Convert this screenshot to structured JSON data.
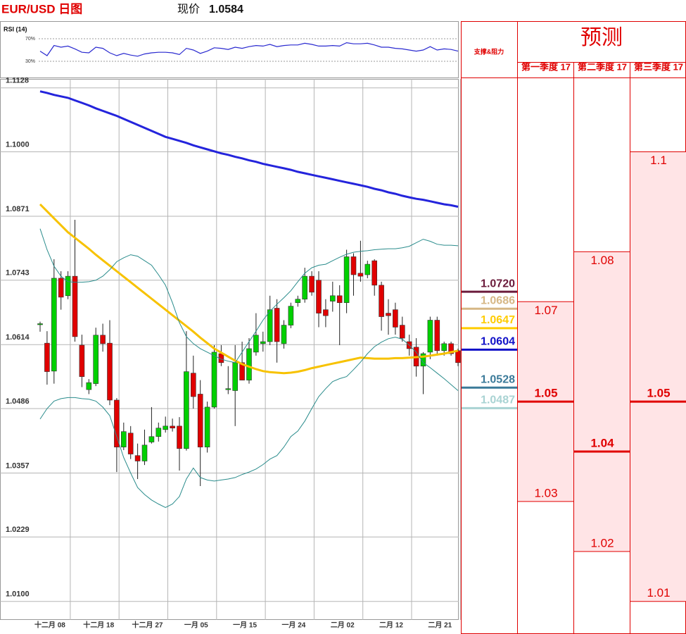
{
  "title": "EUR/USD 日图",
  "price_label": "现价",
  "price": 1.0584,
  "chart_data": [
    {
      "type": "candlestick",
      "categories": [
        null,
        "十二月 08",
        null,
        null,
        null,
        null,
        null,
        null,
        "十二月 18",
        null,
        null,
        null,
        null,
        null,
        null,
        "十二月 27",
        null,
        null,
        null,
        null,
        null,
        null,
        "一月 05",
        null,
        null,
        null,
        null,
        null,
        null,
        "一月 15",
        null,
        null,
        null,
        null,
        null,
        null,
        "一月 24",
        null,
        null,
        null,
        null,
        null,
        null,
        "二月 02",
        null,
        null,
        null,
        null,
        null,
        null,
        "二月 12",
        null,
        null,
        null,
        null,
        null,
        null,
        "二月 21",
        null,
        null,
        null
      ],
      "ohlc": {
        "open": [
          1.0655,
          1.0617,
          1.0561,
          1.0747,
          1.0712,
          1.0751,
          1.0613,
          1.0524,
          1.0536,
          1.0633,
          1.0617,
          1.0503,
          1.0409,
          1.0437,
          1.0392,
          1.0381,
          1.0419,
          1.043,
          1.0444,
          1.0451,
          1.0451,
          1.0406,
          1.0557,
          1.0515,
          1.0409,
          1.0489,
          1.0596,
          1.0525,
          1.0522,
          1.0578,
          1.0543,
          1.0599,
          1.0616,
          1.062,
          1.0687,
          1.0616,
          1.0653,
          1.0698,
          1.0705,
          1.0751,
          1.0743,
          1.0684,
          1.0701,
          1.0712,
          1.0698,
          1.079,
          1.0757,
          1.0754,
          1.0782,
          1.0733,
          1.0677,
          1.0684,
          1.0653,
          1.062,
          1.0609,
          1.0571,
          1.0599,
          1.0663,
          1.0602,
          1.0616,
          1.0602
        ],
        "high": [
          1.066,
          1.0641,
          1.0785,
          1.0761,
          1.0761,
          1.0864,
          1.0634,
          1.0545,
          1.0648,
          1.0656,
          1.0663,
          1.0507,
          1.0458,
          1.0451,
          1.0416,
          1.0444,
          1.0489,
          1.0458,
          1.047,
          1.0466,
          1.0469,
          1.0641,
          1.0592,
          1.0543,
          1.05,
          1.0613,
          1.0613,
          1.0571,
          1.0613,
          1.062,
          1.0627,
          1.0677,
          1.064,
          1.0712,
          1.0705,
          1.0663,
          1.0698,
          1.0712,
          1.0768,
          1.0761,
          1.0761,
          1.0705,
          1.074,
          1.0733,
          1.0804,
          1.0797,
          1.0822,
          1.0782,
          1.0785,
          1.074,
          1.0705,
          1.0698,
          1.067,
          1.0634,
          1.0627,
          1.0599,
          1.067,
          1.067,
          1.062,
          1.062,
          1.0606
        ],
        "low": [
          1.064,
          1.0534,
          1.0536,
          1.0684,
          1.0705,
          1.062,
          1.0529,
          1.0515,
          1.0531,
          1.06,
          1.0493,
          1.0359,
          1.0403,
          1.0385,
          1.0345,
          1.0373,
          1.0416,
          1.042,
          1.0438,
          1.044,
          1.0362,
          1.0402,
          1.0486,
          1.0331,
          1.0398,
          1.0486,
          1.0571,
          1.0515,
          1.0451,
          1.0543,
          1.0536,
          1.0592,
          1.06,
          1.0613,
          1.0578,
          1.0606,
          1.0647,
          1.069,
          1.0698,
          1.0712,
          1.0649,
          1.0649,
          1.068,
          1.0613,
          1.0677,
          1.0712,
          1.074,
          1.0747,
          1.0712,
          1.0642,
          1.0634,
          1.0634,
          1.062,
          1.0592,
          1.055,
          1.0515,
          1.0585,
          1.0592,
          1.0592,
          1.0592,
          1.0571
        ],
        "close": [
          1.0656,
          1.056,
          1.0747,
          1.0709,
          1.0751,
          1.063,
          1.055,
          1.0538,
          1.0633,
          1.0616,
          1.0503,
          1.0409,
          1.044,
          1.0395,
          1.0381,
          1.0413,
          1.043,
          1.0447,
          1.0451,
          1.0447,
          1.0406,
          1.056,
          1.051,
          1.0409,
          1.0489,
          1.0599,
          1.0578,
          1.0526,
          1.0578,
          1.0543,
          1.0606,
          1.0633,
          1.062,
          1.0684,
          1.062,
          1.0653,
          1.0691,
          1.0705,
          1.0751,
          1.0719,
          1.0677,
          1.0672,
          1.0712,
          1.0698,
          1.079,
          1.0754,
          1.0751,
          1.0775,
          1.0733,
          1.067,
          1.0672,
          1.0649,
          1.0627,
          1.0606,
          1.0571,
          1.0596,
          1.0663,
          1.0602,
          1.0616,
          1.0596,
          1.0578
        ]
      },
      "up_color": "#00d000",
      "down_color": "#e00000",
      "series": [
        {
          "color": "#2424dc",
          "values": [
            1.1121,
            1.1118,
            1.1114,
            1.1111,
            1.1108,
            1.1103,
            1.1098,
            1.1093,
            1.1087,
            1.1082,
            1.1077,
            1.1072,
            1.1066,
            1.106,
            1.1054,
            1.1048,
            1.1042,
            1.1036,
            1.103,
            1.1026,
            1.1022,
            1.1018,
            1.1013,
            1.1009,
            1.1005,
            1.1001,
            1.0997,
            1.0994,
            1.099,
            1.0987,
            1.0983,
            1.098,
            1.0976,
            1.0973,
            1.097,
            1.0967,
            1.0964,
            1.096,
            1.0957,
            1.0954,
            1.0951,
            1.0948,
            1.0945,
            1.0942,
            1.0939,
            1.0936,
            1.0933,
            1.093,
            1.0926,
            1.0923,
            1.0919,
            1.0916,
            1.0912,
            1.0909,
            1.0906,
            1.0904,
            1.0901,
            1.0898,
            1.0895,
            1.0893,
            1.089
          ]
        },
        {
          "color": "#f7c200",
          "values": [
            1.0895,
            1.0881,
            1.0867,
            1.0853,
            1.0839,
            1.0828,
            1.0817,
            1.0806,
            1.0794,
            1.0783,
            1.0772,
            1.0761,
            1.075,
            1.0739,
            1.0728,
            1.0717,
            1.0706,
            1.0695,
            1.0684,
            1.0673,
            1.0662,
            1.0651,
            1.064,
            1.0628,
            1.0617,
            1.0606,
            1.0598,
            1.059,
            1.0582,
            1.0575,
            1.057,
            1.0565,
            1.0561,
            1.0559,
            1.0558,
            1.0557,
            1.0558,
            1.056,
            1.0563,
            1.0567,
            1.057,
            1.0573,
            1.0576,
            1.0579,
            1.0582,
            1.0585,
            1.0588,
            1.0587,
            1.0586,
            1.0586,
            1.0586,
            1.0587,
            1.0587,
            1.0588,
            1.0589,
            1.059,
            1.0592,
            1.0594,
            1.0596,
            1.0599,
            1.0602
          ]
        },
        {
          "color": "#2a8c8c",
          "values": [
            1.0846,
            1.0804,
            1.0771,
            1.0751,
            1.074,
            1.0739,
            1.0739,
            1.074,
            1.0743,
            1.0751,
            1.0764,
            1.078,
            1.0788,
            1.0794,
            1.0791,
            1.0782,
            1.0773,
            1.0754,
            1.0733,
            1.0698,
            1.0658,
            1.063,
            1.0616,
            1.0606,
            1.0599,
            1.0592,
            1.0585,
            1.0581,
            1.0578,
            1.0599,
            1.062,
            1.0641,
            1.0663,
            1.0681,
            1.0695,
            1.0708,
            1.0722,
            1.074,
            1.0757,
            1.0768,
            1.0773,
            1.0775,
            1.0782,
            1.0789,
            1.0795,
            1.0799,
            1.0801,
            1.0802,
            1.0804,
            1.0805,
            1.0806,
            1.0806,
            1.0808,
            1.0811,
            1.0818,
            1.0825,
            1.0821,
            1.0815,
            1.0813,
            1.0813,
            1.0812
          ]
        },
        {
          "color": "#2a8c8c",
          "values": [
            1.0465,
            1.0486,
            1.0501,
            1.0506,
            1.0508,
            1.0508,
            1.0506,
            1.0505,
            1.0501,
            1.0489,
            1.0472,
            1.043,
            1.0388,
            1.0357,
            1.0328,
            1.0314,
            1.0303,
            1.0295,
            1.0288,
            1.0295,
            1.031,
            1.0345,
            1.0367,
            1.0348,
            1.0343,
            1.0341,
            1.0343,
            1.0345,
            1.0348,
            1.0354,
            1.0359,
            1.0365,
            1.0374,
            1.0385,
            1.0392,
            1.0409,
            1.043,
            1.0441,
            1.0461,
            1.0486,
            1.051,
            1.0526,
            1.054,
            1.0546,
            1.055,
            1.0564,
            1.0579,
            1.0596,
            1.061,
            1.0619,
            1.0626,
            1.0629,
            1.0625,
            1.0613,
            1.0599,
            1.0578,
            1.0568,
            1.0557,
            1.0546,
            1.0534,
            1.0522
          ]
        }
      ],
      "ylim": [
        1.0063,
        1.1146
      ],
      "yticks": [
        {
          "value": 1.01,
          "label": "1.0100"
        },
        1.0229,
        1.0357,
        1.0486,
        1.0614,
        1.0743,
        1.0871,
        {
          "value": 1.1,
          "label": "1.1000"
        },
        1.1128
      ],
      "grid": true
    },
    {
      "type": "line",
      "title": "RSI (14)",
      "color": "#2a2ad0",
      "values": [
        48,
        40,
        58,
        55,
        57,
        52,
        46,
        45,
        55,
        53,
        45,
        40,
        44,
        41,
        39,
        43,
        45,
        46,
        46,
        45,
        42,
        53,
        50,
        44,
        48,
        54,
        53,
        51,
        55,
        53,
        56,
        58,
        57,
        60,
        56,
        58,
        59,
        59,
        62,
        60,
        57,
        57,
        58,
        57,
        63,
        61,
        61,
        62,
        59,
        55,
        55,
        53,
        52,
        50,
        48,
        50,
        56,
        50,
        52,
        51,
        48
      ],
      "ylim": [
        0,
        100
      ],
      "yticks": [
        {
          "value": 30,
          "label": "30%"
        },
        {
          "value": 70,
          "label": "70%"
        }
      ]
    },
    {
      "type": "forecast",
      "levels_title": "支撑&阻力",
      "levels": [
        1.072,
        1.0686,
        1.0647,
        1.0604,
        1.0528,
        1.0487
      ],
      "value_labels": [
        "1.0720",
        "1.0686",
        "1.0647",
        "1.0604",
        "1.0528",
        "1.0487"
      ],
      "level_colors": [
        "#6b1b3b",
        "#d6b785",
        "#ffcc00",
        "#1010c8",
        "#3b7a99",
        "#a9d3d3"
      ],
      "title": "预测",
      "categories": [
        "第一季度 17",
        "第二季度 17",
        "第三季度 17"
      ],
      "high": [
        1.07,
        1.08,
        1.1
      ],
      "mid": [
        1.05,
        1.04,
        1.05
      ],
      "low": [
        1.03,
        1.02,
        1.01
      ],
      "color": "#e00000",
      "fill": "#ffe4e6"
    }
  ]
}
